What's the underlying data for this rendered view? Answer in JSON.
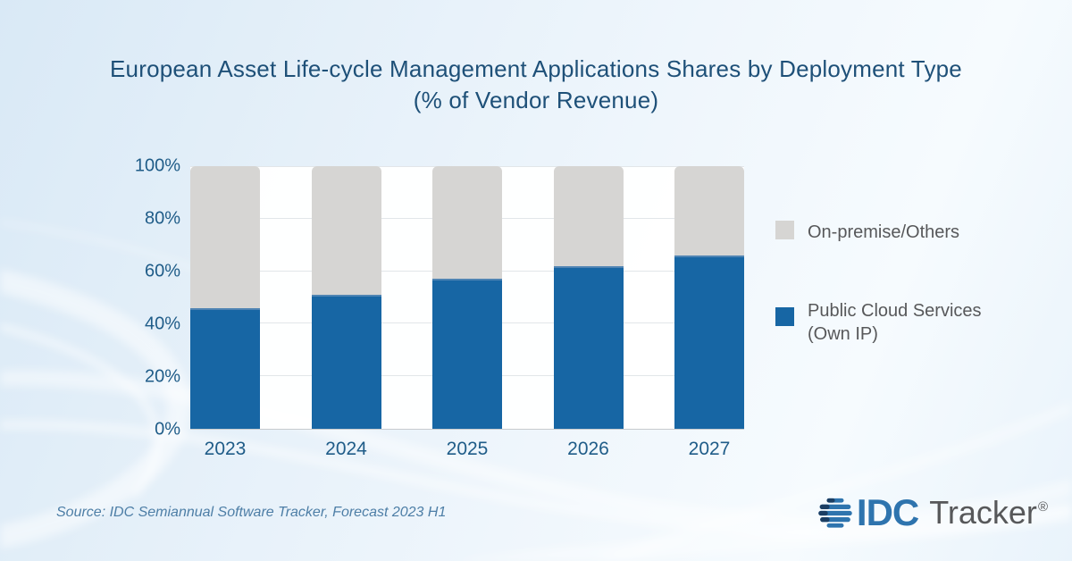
{
  "title": {
    "line1": "European Asset Life-cycle Management Applications Shares by Deployment Type",
    "line2": "(% of Vendor Revenue)"
  },
  "chart_data": {
    "type": "bar",
    "stacked": true,
    "stack_total": 100,
    "title": "European Asset Life-cycle Management Applications Shares by Deployment Type (% of Vendor Revenue)",
    "categories": [
      "2023",
      "2024",
      "2025",
      "2026",
      "2027"
    ],
    "series": [
      {
        "name": "Public Cloud Services (Own IP)",
        "color": "#1766A4",
        "values": [
          46,
          51,
          57,
          62,
          66
        ]
      },
      {
        "name": "On-premise/Others",
        "color": "#D6D5D3",
        "values": [
          54,
          49,
          43,
          38,
          34
        ]
      }
    ],
    "xlabel": "",
    "ylabel": "",
    "ylim": [
      0,
      100
    ],
    "yticks": [
      0,
      20,
      40,
      60,
      80,
      100
    ],
    "ytick_format": "percent",
    "grid": true,
    "legend_position": "right"
  },
  "legend": {
    "items": [
      {
        "label": "On-premise/Others",
        "color": "#D6D5D3"
      },
      {
        "line1": "Public Cloud Services",
        "line2": "(Own IP)",
        "color": "#1766A4"
      }
    ]
  },
  "footer": {
    "source": "Source: IDC Semiannual Software Tracker, Forecast 2023 H1",
    "logo": {
      "brand": "IDC",
      "product": "Tracker",
      "registered": "®"
    }
  },
  "colors": {
    "title_text": "#1E5078",
    "axis_text": "#1F5C88",
    "legend_text": "#57585A",
    "source_text": "#4D7EA6",
    "bar_blue": "#1766A4",
    "bar_gray": "#D6D5D3",
    "plot_background": "#FFFFFF",
    "gridline": "#E2E6E9",
    "logo_blue": "#2E74AE",
    "logo_navy": "#1B3E63",
    "logo_gray": "#57585A"
  }
}
